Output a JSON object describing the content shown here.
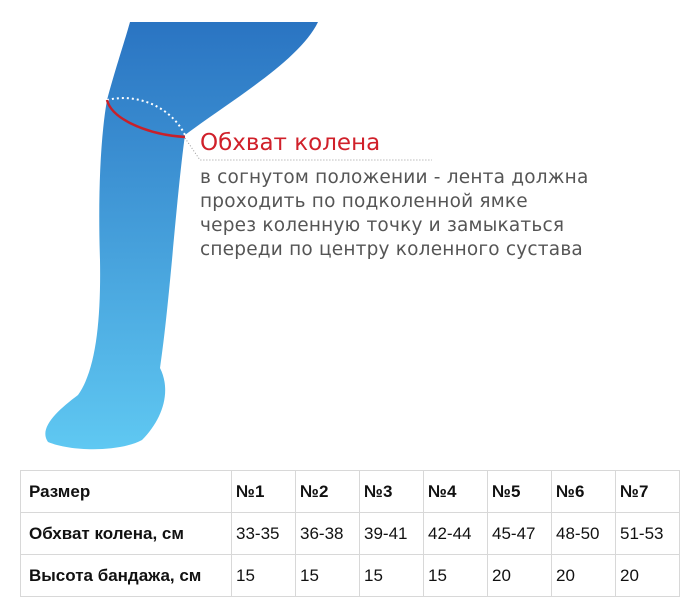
{
  "heading": "Обхват колена",
  "description": [
    "в согнутом положении - лента должна",
    "проходить по подколенной ямке",
    "через коленную точку и замыкаться",
    "спереди по центру коленного сустава"
  ],
  "table": {
    "rows": [
      [
        "Размер",
        "№1",
        "№2",
        "№3",
        "№4",
        "№5",
        "№6",
        "№7"
      ],
      [
        "Обхват колена, см",
        "33-35",
        "36-38",
        "39-41",
        "42-44",
        "45-47",
        "48-50",
        "51-53"
      ],
      [
        "Высота бандажа, см",
        "15",
        "15",
        "15",
        "15",
        "20",
        "20",
        "20"
      ]
    ]
  }
}
